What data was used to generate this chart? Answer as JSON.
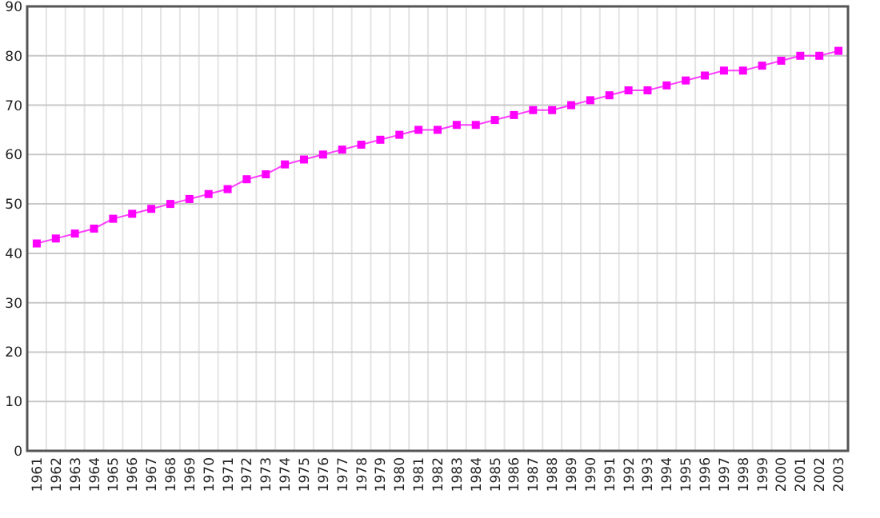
{
  "chart_data": {
    "type": "line",
    "categories": [
      "1961",
      "1962",
      "1963",
      "1964",
      "1965",
      "1966",
      "1967",
      "1968",
      "1969",
      "1970",
      "1971",
      "1972",
      "1973",
      "1974",
      "1975",
      "1976",
      "1977",
      "1978",
      "1979",
      "1980",
      "1981",
      "1982",
      "1983",
      "1984",
      "1985",
      "1986",
      "1987",
      "1988",
      "1989",
      "1990",
      "1991",
      "1992",
      "1993",
      "1994",
      "1995",
      "1996",
      "1997",
      "1998",
      "1999",
      "2000",
      "2001",
      "2002",
      "2003"
    ],
    "series": [
      {
        "color": "#ff00ff",
        "values": [
          42,
          43,
          44,
          45,
          47,
          48,
          49,
          50,
          51,
          52,
          53,
          55,
          56,
          58,
          59,
          60,
          61,
          62,
          63,
          64,
          65,
          65,
          66,
          66,
          67,
          68,
          69,
          69,
          70,
          71,
          72,
          73,
          73,
          74,
          75,
          76,
          77,
          77,
          78,
          79,
          80,
          80,
          81
        ]
      }
    ],
    "ylim": [
      0,
      90
    ],
    "yticks": [
      0,
      10,
      20,
      30,
      40,
      50,
      60,
      70,
      80,
      90
    ],
    "grid": true,
    "marker": "square",
    "line_style": "solid"
  }
}
